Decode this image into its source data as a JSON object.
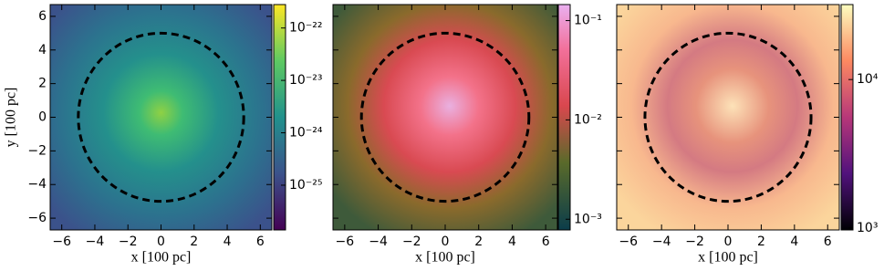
{
  "chart_data": [
    {
      "type": "heatmap",
      "colormap": "viridis",
      "xlabel": "x [100 pc]",
      "ylabel": "y [100 pc]",
      "xlim": [
        -6.7,
        6.7
      ],
      "ylim": [
        -6.7,
        6.7
      ],
      "xticks": [
        {
          "value": -6,
          "label": "−6"
        },
        {
          "value": -4,
          "label": "−4"
        },
        {
          "value": -2,
          "label": "−2"
        },
        0,
        2,
        4,
        6
      ],
      "yticks": [
        {
          "value": -6,
          "label": "−6"
        },
        {
          "value": -4,
          "label": "−4"
        },
        {
          "value": -2,
          "label": "−2"
        },
        0,
        2,
        4,
        6
      ],
      "circle": {
        "center": [
          0,
          0
        ],
        "radius": 5
      },
      "colorbar": {
        "scale": "log",
        "lim": [
          1.4e-26,
          2.8e-22
        ],
        "ticks": [
          {
            "value": 1e-22,
            "label": "10⁻²²"
          },
          {
            "value": 1e-23,
            "label": "10⁻²³"
          },
          {
            "value": 1e-24,
            "label": "10⁻²⁴"
          },
          {
            "value": 1e-25,
            "label": "10⁻²⁵"
          }
        ]
      }
    },
    {
      "type": "heatmap",
      "colormap": "teal-green-red-pink",
      "xlabel": "x [100 pc]",
      "xlim": [
        -6.7,
        6.7
      ],
      "ylim": [
        -6.7,
        6.7
      ],
      "xticks": [
        {
          "value": -6,
          "label": "−6"
        },
        {
          "value": -4,
          "label": "−4"
        },
        {
          "value": -2,
          "label": "−2"
        },
        0,
        2,
        4,
        6
      ],
      "circle": {
        "center": [
          0,
          0
        ],
        "radius": 5
      },
      "colorbar": {
        "scale": "log",
        "lim": [
          0.00078,
          0.145
        ],
        "ticks": [
          {
            "value": 0.1,
            "label": "10⁻¹"
          },
          {
            "value": 0.01,
            "label": "10⁻²"
          },
          {
            "value": 0.001,
            "label": "10⁻³"
          }
        ]
      }
    },
    {
      "type": "heatmap",
      "colormap": "magma",
      "xlabel": "x [100 pc]",
      "xlim": [
        -6.7,
        6.7
      ],
      "ylim": [
        -6.7,
        6.7
      ],
      "xticks": [
        {
          "value": -6,
          "label": "−6"
        },
        {
          "value": -4,
          "label": "−4"
        },
        {
          "value": -2,
          "label": "−2"
        },
        0,
        2,
        4,
        6
      ],
      "circle": {
        "center": [
          0,
          0
        ],
        "radius": 5
      },
      "colorbar": {
        "scale": "log",
        "lim": [
          970,
          32000
        ],
        "ticks": [
          {
            "value": 10000,
            "label": "10⁴"
          },
          {
            "value": 1000,
            "label": "10³"
          }
        ]
      }
    }
  ]
}
